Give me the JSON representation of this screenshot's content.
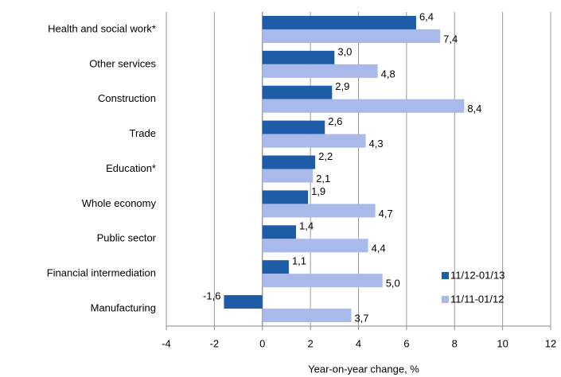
{
  "chart_data": {
    "type": "bar",
    "orientation": "horizontal",
    "x_label": "Year-on-year change, %",
    "categories": [
      "Health and social work*",
      "Other services",
      "Construction",
      "Trade",
      "Education*",
      "Whole economy",
      "Public sector",
      "Financial intermediation",
      "Manufacturing"
    ],
    "series": [
      {
        "name": "11/12-01/13",
        "color": "#1f5ca8",
        "values": [
          6.4,
          3.0,
          2.9,
          2.6,
          2.2,
          1.9,
          1.4,
          1.1,
          -1.6
        ],
        "value_labels": [
          "6,4",
          "3,0",
          "2,9",
          "2,6",
          "2,2",
          "1,9",
          "1,4",
          "1,1",
          "-1,6"
        ]
      },
      {
        "name": "11/11-01/12",
        "color": "#a8b9ea",
        "values": [
          7.4,
          4.8,
          8.4,
          4.3,
          2.1,
          4.7,
          4.4,
          5.0,
          3.7
        ],
        "value_labels": [
          "7,4",
          "4,8",
          "8,4",
          "4,3",
          "2,1",
          "4,7",
          "4,4",
          "5,0",
          "3,7"
        ]
      }
    ],
    "xlim": [
      -4,
      12
    ],
    "xticks": [
      -4,
      -2,
      0,
      2,
      4,
      6,
      8,
      10,
      12
    ],
    "grid": true,
    "legend": "lower right"
  }
}
